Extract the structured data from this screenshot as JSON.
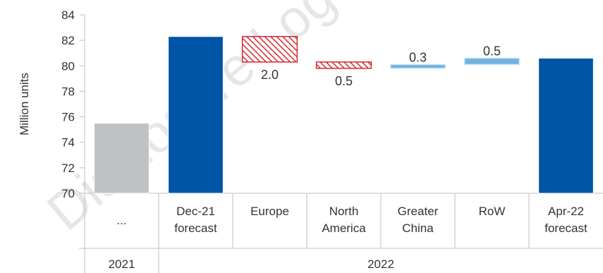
{
  "chart_data": {
    "type": "bar",
    "subtype": "waterfall",
    "ylabel": "Million units",
    "ylim": [
      70,
      84
    ],
    "yticks": [
      70,
      72,
      74,
      76,
      78,
      80,
      82,
      84
    ],
    "grid": false,
    "categories": [
      {
        "lines": [
          "..."
        ],
        "group": "2021"
      },
      {
        "lines": [
          "Dec-21",
          "forecast"
        ],
        "group": "2022"
      },
      {
        "lines": [
          "Europe"
        ],
        "group": "2022"
      },
      {
        "lines": [
          "North",
          "America"
        ],
        "group": "2022"
      },
      {
        "lines": [
          "Greater",
          "China"
        ],
        "group": "2022"
      },
      {
        "lines": [
          "RoW"
        ],
        "group": "2022"
      },
      {
        "lines": [
          "Apr-22",
          "forecast"
        ],
        "group": "2022"
      }
    ],
    "groups": [
      "2021",
      "2022"
    ],
    "bars": [
      {
        "kind": "total",
        "start": 70,
        "end": 75.5,
        "color": "#bfc1c3",
        "label": ""
      },
      {
        "kind": "total",
        "start": 70,
        "end": 82.3,
        "color": "#0054a6",
        "label": ""
      },
      {
        "kind": "decrease",
        "start": 80.3,
        "end": 82.3,
        "color": "#d7282f",
        "label": "2.0"
      },
      {
        "kind": "decrease",
        "start": 79.8,
        "end": 80.3,
        "color": "#d7282f",
        "label": "0.5"
      },
      {
        "kind": "increase",
        "start": 79.8,
        "end": 80.1,
        "color": "#6fb3e0",
        "label": "0.3"
      },
      {
        "kind": "increase",
        "start": 80.1,
        "end": 80.6,
        "color": "#6fb3e0",
        "label": "0.5"
      },
      {
        "kind": "total",
        "start": 70,
        "end": 80.6,
        "color": "#0054a6",
        "label": ""
      }
    ]
  },
  "watermark": "Disclosure Log"
}
